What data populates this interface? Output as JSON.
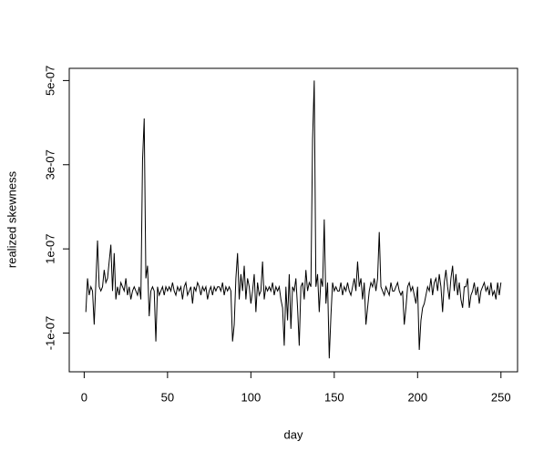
{
  "chart_data": {
    "type": "line",
    "xlabel": "day",
    "ylabel": "realized skewness",
    "color": "#000000",
    "x": [
      1,
      2,
      3,
      4,
      5,
      6,
      7,
      8,
      9,
      10,
      11,
      12,
      13,
      14,
      15,
      16,
      17,
      18,
      19,
      20,
      21,
      22,
      23,
      24,
      25,
      26,
      27,
      28,
      29,
      30,
      31,
      32,
      33,
      34,
      35,
      36,
      37,
      38,
      39,
      40,
      41,
      42,
      43,
      44,
      45,
      46,
      47,
      48,
      49,
      50,
      51,
      52,
      53,
      54,
      55,
      56,
      57,
      58,
      59,
      60,
      61,
      62,
      63,
      64,
      65,
      66,
      67,
      68,
      69,
      70,
      71,
      72,
      73,
      74,
      75,
      76,
      77,
      78,
      79,
      80,
      81,
      82,
      83,
      84,
      85,
      86,
      87,
      88,
      89,
      90,
      91,
      92,
      93,
      94,
      95,
      96,
      97,
      98,
      99,
      100,
      101,
      102,
      103,
      104,
      105,
      106,
      107,
      108,
      109,
      110,
      111,
      112,
      113,
      114,
      115,
      116,
      117,
      118,
      119,
      120,
      121,
      122,
      123,
      124,
      125,
      126,
      127,
      128,
      129,
      130,
      131,
      132,
      133,
      134,
      135,
      136,
      137,
      138,
      139,
      140,
      141,
      142,
      143,
      144,
      145,
      146,
      147,
      148,
      149,
      150,
      151,
      152,
      153,
      154,
      155,
      156,
      157,
      158,
      159,
      160,
      161,
      162,
      163,
      164,
      165,
      166,
      167,
      168,
      169,
      170,
      171,
      172,
      173,
      174,
      175,
      176,
      177,
      178,
      179,
      180,
      181,
      182,
      183,
      184,
      185,
      186,
      187,
      188,
      189,
      190,
      191,
      192,
      193,
      194,
      195,
      196,
      197,
      198,
      199,
      200,
      201,
      202,
      203,
      204,
      205,
      206,
      207,
      208,
      209,
      210,
      211,
      212,
      213,
      214,
      215,
      216,
      217,
      218,
      219,
      220,
      221,
      222,
      223,
      224,
      225,
      226,
      227,
      228,
      229,
      230,
      231,
      232,
      233,
      234,
      235,
      236,
      237,
      238,
      239,
      240,
      241,
      242,
      243,
      244,
      245,
      246,
      247,
      248,
      249,
      250
    ],
    "values": [
      -5e-08,
      3e-08,
      -1e-08,
      1e-08,
      0,
      -8e-08,
      2e-08,
      1.2e-07,
      1e-08,
      0,
      1e-08,
      5e-08,
      2e-08,
      3e-08,
      7e-08,
      1.1e-07,
      0,
      9e-08,
      -2e-08,
      1e-08,
      -1e-08,
      2e-08,
      1e-08,
      0,
      3e-08,
      -1e-08,
      1e-08,
      -2e-08,
      0,
      1e-08,
      0,
      -1e-08,
      1e-08,
      -2e-08,
      3.1e-07,
      4.1e-07,
      3e-08,
      6e-08,
      -6e-08,
      0,
      1e-08,
      0,
      -1.2e-07,
      1e-08,
      -1e-08,
      0,
      1e-08,
      -1e-08,
      1e-08,
      0,
      1e-08,
      0,
      2e-08,
      0,
      -1e-08,
      1e-08,
      0,
      1e-08,
      -2e-08,
      1e-08,
      2e-08,
      -1e-08,
      0,
      1e-08,
      -3e-08,
      1e-08,
      0,
      2e-08,
      1e-08,
      -1e-08,
      1e-08,
      0,
      1e-08,
      -2e-08,
      0,
      1e-08,
      -1e-08,
      1e-08,
      0,
      1e-08,
      1e-08,
      0,
      2e-08,
      -1e-08,
      1e-08,
      0,
      1e-08,
      0,
      -1.2e-07,
      -8e-08,
      3e-08,
      9e-08,
      -2e-08,
      4e-08,
      0,
      6e-08,
      -2e-08,
      3e-08,
      1e-08,
      -3e-08,
      0,
      4e-08,
      -5e-08,
      2e-08,
      -1e-08,
      0,
      7e-08,
      -2e-08,
      1e-08,
      0,
      1e-08,
      0,
      2e-08,
      -1e-08,
      1e-08,
      0,
      1e-08,
      -2e-08,
      -4e-08,
      -1.3e-07,
      1e-08,
      -7e-08,
      4e-08,
      -9e-08,
      1e-08,
      0,
      3e-08,
      -4e-08,
      -1.3e-07,
      1e-08,
      2e-08,
      -2e-08,
      5e-08,
      0,
      2e-08,
      1e-08,
      3.6e-07,
      5e-07,
      1e-08,
      4e-08,
      -5e-08,
      3e-08,
      1e-08,
      1.7e-07,
      -3e-08,
      2e-08,
      -1.6e-07,
      -6e-08,
      2e-08,
      0,
      1e-08,
      0,
      0,
      2e-08,
      -1e-08,
      1e-08,
      0,
      2e-08,
      0,
      -1e-08,
      1e-08,
      3e-08,
      0,
      7e-08,
      1e-08,
      3e-08,
      -2e-08,
      2e-08,
      -8e-08,
      -4e-08,
      0,
      2e-08,
      1e-08,
      3e-08,
      0,
      3e-08,
      1.4e-07,
      1e-08,
      0,
      -1e-08,
      1e-08,
      0,
      -1e-08,
      2e-08,
      0,
      0,
      1e-08,
      2e-08,
      0,
      -1e-08,
      0,
      -8e-08,
      -4e-08,
      1e-08,
      2e-08,
      0,
      1e-08,
      -1e-08,
      -3e-08,
      1e-08,
      -1.4e-07,
      -7e-08,
      -4e-08,
      -3e-08,
      -1e-08,
      1e-08,
      0,
      3e-08,
      -1e-08,
      2e-08,
      3e-08,
      0,
      4e-08,
      1e-08,
      -5e-08,
      2e-08,
      5e-08,
      1e-08,
      -2e-08,
      3e-08,
      6e-08,
      0,
      4e-08,
      -1e-08,
      2e-08,
      -2e-08,
      -4e-08,
      1e-08,
      1e-08,
      3e-08,
      -4e-08,
      -1e-08,
      0,
      2e-08,
      -1e-08,
      1e-08,
      -3e-08,
      0,
      1e-08,
      2e-08,
      0,
      1e-08,
      -1e-08,
      2e-08,
      -1e-08,
      0,
      -2e-08,
      2e-08,
      -1e-08,
      2e-08
    ],
    "xlim": [
      -8.96,
      259.96
    ],
    "xticks": [
      0,
      50,
      100,
      150,
      200,
      250
    ],
    "ylim": [
      -1.92e-07,
      5.29e-07
    ],
    "yticks": [
      {
        "value": -1e-07,
        "label": "-1e-07"
      },
      {
        "value": 1e-07,
        "label": "1e-07"
      },
      {
        "value": 3e-07,
        "label": "3e-07"
      },
      {
        "value": 5e-07,
        "label": "5e-07"
      }
    ]
  }
}
